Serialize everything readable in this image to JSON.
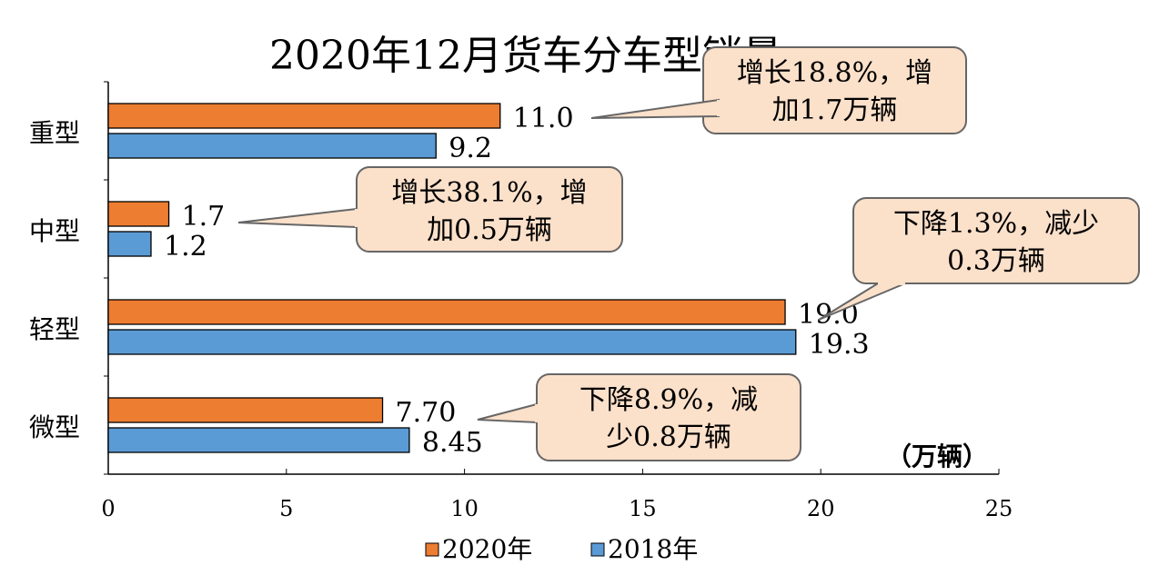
{
  "chart_data": {
    "type": "bar",
    "orientation": "horizontal",
    "title": "2020年12月货车分车型销量",
    "categories": [
      "重型",
      "中型",
      "轻型",
      "微型"
    ],
    "series": [
      {
        "name": "2020年",
        "color": "#ED7D31",
        "values": [
          11.0,
          1.7,
          19.0,
          7.7
        ],
        "labels": [
          "11.0",
          "1.7",
          "19.0",
          "7.70"
        ]
      },
      {
        "name": "2018年",
        "color": "#5B9BD5",
        "values": [
          9.2,
          1.2,
          19.3,
          8.45
        ],
        "labels": [
          "9.2",
          "1.2",
          "19.3",
          "8.45"
        ]
      }
    ],
    "xlim": [
      0,
      25
    ],
    "xticks": [
      0,
      5,
      10,
      15,
      20,
      25
    ],
    "unit_label": "（万辆）",
    "legend_position": "bottom",
    "annotations": [
      {
        "category": "重型",
        "lines": [
          "增长18.8%，增",
          "加1.7万辆"
        ]
      },
      {
        "category": "中型",
        "lines": [
          "增长38.1%，增",
          "加0.5万辆"
        ]
      },
      {
        "category": "轻型",
        "lines": [
          "下降1.3%，减少",
          "0.3万辆"
        ]
      },
      {
        "category": "微型",
        "lines": [
          "下降8.9%，减",
          "少0.8万辆"
        ]
      }
    ],
    "callout_fill": "#FBE0CA"
  }
}
